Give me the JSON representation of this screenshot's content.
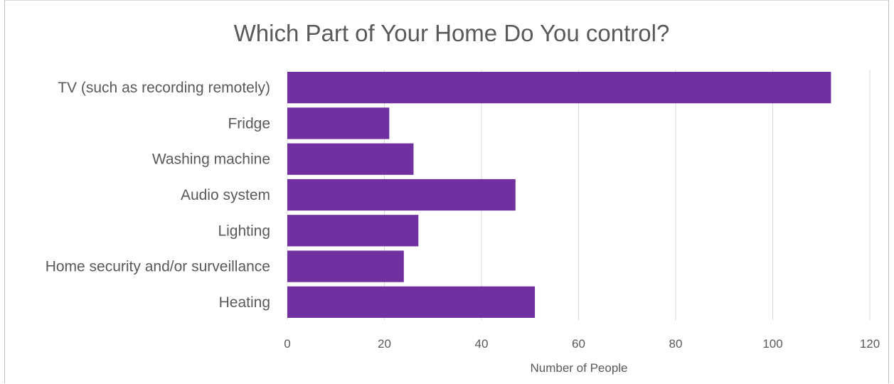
{
  "chart_data": {
    "type": "bar",
    "orientation": "horizontal",
    "title": "Which Part of Your Home Do You control?",
    "xlabel": "Number of People",
    "ylabel": "",
    "categories": [
      "TV (such as recording remotely)",
      "Fridge",
      "Washing machine",
      "Audio system",
      "Lighting",
      "Home security and/or surveillance",
      "Heating"
    ],
    "values": [
      112,
      21,
      26,
      47,
      27,
      24,
      51
    ],
    "xlim": [
      0,
      120
    ],
    "x_ticks": [
      "0",
      "20",
      "40",
      "60",
      "80",
      "100",
      "120"
    ],
    "grid": true,
    "legend": "none",
    "bar_color": "#7030a0",
    "grid_color": "#d9d9d9"
  }
}
